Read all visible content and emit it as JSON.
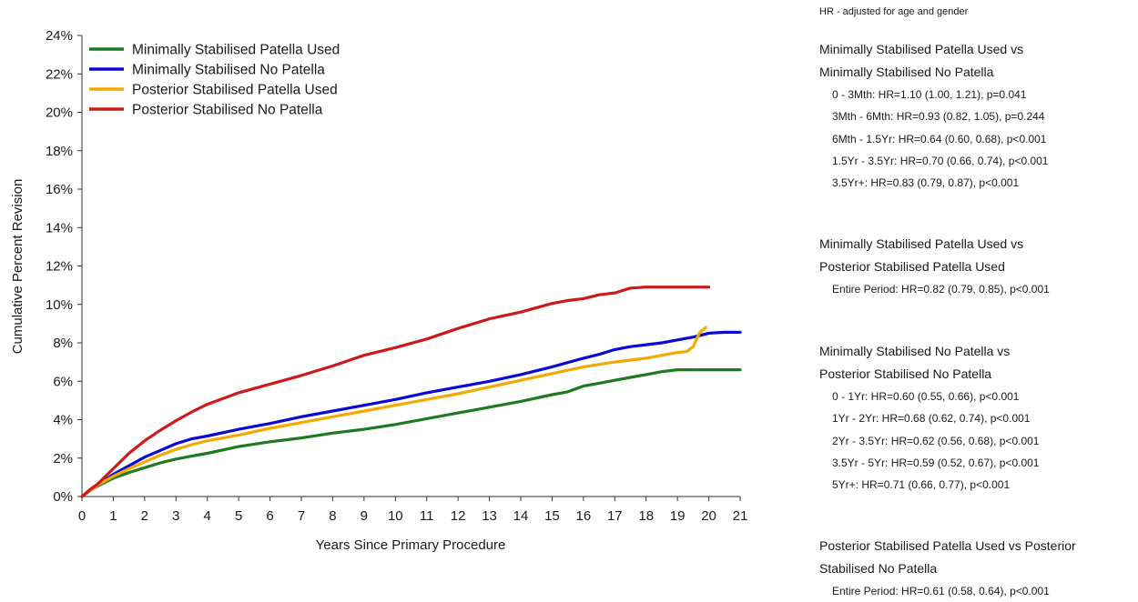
{
  "chart_data": {
    "type": "line",
    "xlabel": "Years Since Primary Procedure",
    "ylabel": "Cumulative Percent Revision",
    "xlim": [
      0,
      21
    ],
    "ylim": [
      0,
      24
    ],
    "x_ticks": [
      "0",
      "1",
      "2",
      "3",
      "4",
      "5",
      "6",
      "7",
      "8",
      "9",
      "10",
      "11",
      "12",
      "13",
      "14",
      "15",
      "16",
      "17",
      "18",
      "19",
      "20",
      "21"
    ],
    "y_ticks": [
      "0%",
      "2%",
      "4%",
      "6%",
      "8%",
      "10%",
      "12%",
      "14%",
      "16%",
      "18%",
      "20%",
      "22%",
      "24%"
    ],
    "grid": false,
    "legend_position": "top-left",
    "series": [
      {
        "name": "Minimally Stabilised Patella Used",
        "color": "#1e7a1e",
        "step_style": "line",
        "points": [
          [
            0,
            0
          ],
          [
            0.25,
            0.3
          ],
          [
            0.5,
            0.55
          ],
          [
            1,
            0.95
          ],
          [
            1.5,
            1.25
          ],
          [
            2,
            1.5
          ],
          [
            2.5,
            1.75
          ],
          [
            3,
            1.95
          ],
          [
            3.5,
            2.1
          ],
          [
            4,
            2.25
          ],
          [
            5,
            2.6
          ],
          [
            6,
            2.85
          ],
          [
            7,
            3.05
          ],
          [
            8,
            3.3
          ],
          [
            9,
            3.5
          ],
          [
            10,
            3.75
          ],
          [
            11,
            4.05
          ],
          [
            12,
            4.35
          ],
          [
            13,
            4.65
          ],
          [
            14,
            4.95
          ],
          [
            15,
            5.3
          ],
          [
            15.5,
            5.45
          ],
          [
            16,
            5.75
          ],
          [
            16.5,
            5.9
          ],
          [
            17,
            6.05
          ],
          [
            17.5,
            6.2
          ],
          [
            18,
            6.35
          ],
          [
            18.5,
            6.5
          ],
          [
            19,
            6.6
          ],
          [
            20,
            6.6
          ],
          [
            21,
            6.6
          ]
        ]
      },
      {
        "name": "Minimally Stabilised No Patella",
        "color": "#0a0ad2",
        "step_style": "line",
        "points": [
          [
            0,
            0
          ],
          [
            0.25,
            0.3
          ],
          [
            0.5,
            0.6
          ],
          [
            1,
            1.15
          ],
          [
            1.5,
            1.6
          ],
          [
            2,
            2.05
          ],
          [
            2.5,
            2.4
          ],
          [
            3,
            2.75
          ],
          [
            3.5,
            3.0
          ],
          [
            4,
            3.15
          ],
          [
            5,
            3.5
          ],
          [
            6,
            3.8
          ],
          [
            7,
            4.15
          ],
          [
            8,
            4.45
          ],
          [
            9,
            4.75
          ],
          [
            10,
            5.05
          ],
          [
            11,
            5.4
          ],
          [
            12,
            5.7
          ],
          [
            13,
            6.0
          ],
          [
            14,
            6.35
          ],
          [
            15,
            6.75
          ],
          [
            16,
            7.2
          ],
          [
            16.5,
            7.4
          ],
          [
            17,
            7.65
          ],
          [
            17.5,
            7.8
          ],
          [
            18,
            7.9
          ],
          [
            18.5,
            8.0
          ],
          [
            19,
            8.15
          ],
          [
            19.5,
            8.3
          ],
          [
            20,
            8.5
          ],
          [
            20.5,
            8.55
          ],
          [
            21,
            8.55
          ]
        ]
      },
      {
        "name": "Posterior Stabilised Patella Used",
        "color": "#f5a800",
        "step_style": "line",
        "points": [
          [
            0,
            0
          ],
          [
            0.25,
            0.3
          ],
          [
            0.5,
            0.6
          ],
          [
            1,
            1.05
          ],
          [
            1.5,
            1.45
          ],
          [
            2,
            1.8
          ],
          [
            2.5,
            2.15
          ],
          [
            3,
            2.45
          ],
          [
            3.5,
            2.7
          ],
          [
            4,
            2.9
          ],
          [
            5,
            3.2
          ],
          [
            6,
            3.55
          ],
          [
            7,
            3.85
          ],
          [
            8,
            4.15
          ],
          [
            9,
            4.45
          ],
          [
            10,
            4.75
          ],
          [
            11,
            5.05
          ],
          [
            12,
            5.35
          ],
          [
            13,
            5.7
          ],
          [
            14,
            6.05
          ],
          [
            15,
            6.4
          ],
          [
            16,
            6.75
          ],
          [
            17,
            7.0
          ],
          [
            17.5,
            7.1
          ],
          [
            18,
            7.2
          ],
          [
            18.5,
            7.35
          ],
          [
            19,
            7.5
          ],
          [
            19.3,
            7.55
          ],
          [
            19.5,
            7.8
          ],
          [
            19.7,
            8.5
          ],
          [
            19.9,
            8.8
          ]
        ]
      },
      {
        "name": "Posterior Stabilised No Patella",
        "color": "#cc1a1a",
        "step_style": "line",
        "points": [
          [
            0,
            0
          ],
          [
            0.25,
            0.35
          ],
          [
            0.5,
            0.65
          ],
          [
            1,
            1.45
          ],
          [
            1.5,
            2.25
          ],
          [
            2,
            2.9
          ],
          [
            2.5,
            3.45
          ],
          [
            3,
            3.95
          ],
          [
            3.5,
            4.4
          ],
          [
            4,
            4.8
          ],
          [
            5,
            5.4
          ],
          [
            6,
            5.85
          ],
          [
            7,
            6.3
          ],
          [
            8,
            6.8
          ],
          [
            9,
            7.35
          ],
          [
            10,
            7.75
          ],
          [
            11,
            8.2
          ],
          [
            12,
            8.75
          ],
          [
            13,
            9.25
          ],
          [
            14,
            9.6
          ],
          [
            15,
            10.05
          ],
          [
            15.5,
            10.2
          ],
          [
            16,
            10.3
          ],
          [
            16.5,
            10.5
          ],
          [
            17,
            10.6
          ],
          [
            17.5,
            10.85
          ],
          [
            18,
            10.9
          ],
          [
            19,
            10.9
          ],
          [
            20,
            10.9
          ]
        ]
      }
    ]
  },
  "hr_panel": {
    "note": "HR - adjusted for age and gender",
    "groups": [
      {
        "heading_1": "Minimally Stabilised Patella Used vs",
        "heading_2": "Minimally Stabilised No Patella",
        "lines": [
          "0 - 3Mth: HR=1.10 (1.00, 1.21), p=0.041",
          "3Mth - 6Mth: HR=0.93 (0.82, 1.05), p=0.244",
          "6Mth - 1.5Yr: HR=0.64 (0.60, 0.68), p<0.001",
          "1.5Yr - 3.5Yr: HR=0.70 (0.66, 0.74), p<0.001",
          "3.5Yr+: HR=0.83 (0.79, 0.87), p<0.001"
        ]
      },
      {
        "heading_1": "Minimally Stabilised Patella Used vs",
        "heading_2": "Posterior Stabilised Patella Used",
        "lines": [
          "Entire Period: HR=0.82 (0.79, 0.85), p<0.001"
        ]
      },
      {
        "heading_1": "Minimally Stabilised No Patella vs",
        "heading_2": "Posterior Stabilised No Patella",
        "lines": [
          "0 - 1Yr: HR=0.60 (0.55, 0.66), p<0.001",
          "1Yr - 2Yr: HR=0.68 (0.62, 0.74), p<0.001",
          "2Yr - 3.5Yr: HR=0.62 (0.56, 0.68), p<0.001",
          "3.5Yr - 5Yr: HR=0.59 (0.52, 0.67), p<0.001",
          "5Yr+: HR=0.71 (0.66, 0.77), p<0.001"
        ]
      },
      {
        "heading_1": "Posterior Stabilised Patella Used vs Posterior",
        "heading_2": "Stabilised No Patella",
        "lines": [
          "Entire Period: HR=0.61 (0.58, 0.64), p<0.001"
        ]
      }
    ]
  }
}
